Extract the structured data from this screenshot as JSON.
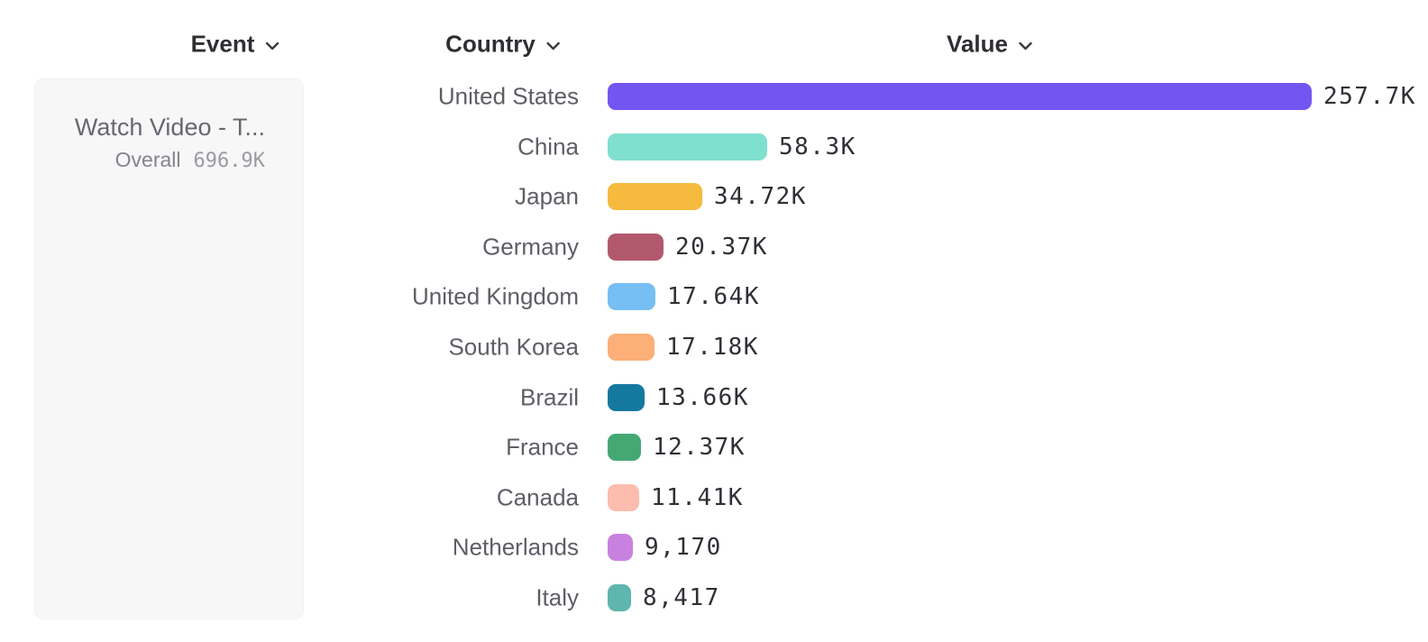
{
  "columns": [
    {
      "id": "event",
      "label": "Event"
    },
    {
      "id": "country",
      "label": "Country"
    },
    {
      "id": "value",
      "label": "Value"
    }
  ],
  "event_card": {
    "title": "Watch Video - T...",
    "overall_label": "Overall",
    "overall_value": "696.9K"
  },
  "icons": {
    "header_chevron": "chevron-down"
  },
  "colors": {
    "background": "#ffffff",
    "header_text": "#2e2f33",
    "country_label_text": "#5e5e66",
    "value_label_text": "#2f3036",
    "event_card_background": "#f7f7f8"
  },
  "chart_data": {
    "type": "bar",
    "orientation": "horizontal",
    "categories": [
      "United States",
      "China",
      "Japan",
      "Germany",
      "United Kingdom",
      "South Korea",
      "Brazil",
      "France",
      "Canada",
      "Netherlands",
      "Italy"
    ],
    "values": [
      257700,
      58300,
      34720,
      20370,
      17640,
      17180,
      13660,
      12370,
      11410,
      9170,
      8417
    ],
    "value_labels": [
      "257.7K",
      "58.3K",
      "34.72K",
      "20.37K",
      "17.64K",
      "17.18K",
      "13.66K",
      "12.37K",
      "11.41K",
      "9,170",
      "8,417"
    ],
    "bar_colors": [
      "#7355f1",
      "#7fe0d0",
      "#f6ba3f",
      "#b2586c",
      "#77bef5",
      "#fcaf78",
      "#15799f",
      "#43a873",
      "#fcbcae",
      "#c981e0",
      "#5fb6ae"
    ],
    "xlim": [
      0,
      257700
    ],
    "grid": false,
    "legend": false,
    "value_labels_position": "end-of-bar"
  }
}
